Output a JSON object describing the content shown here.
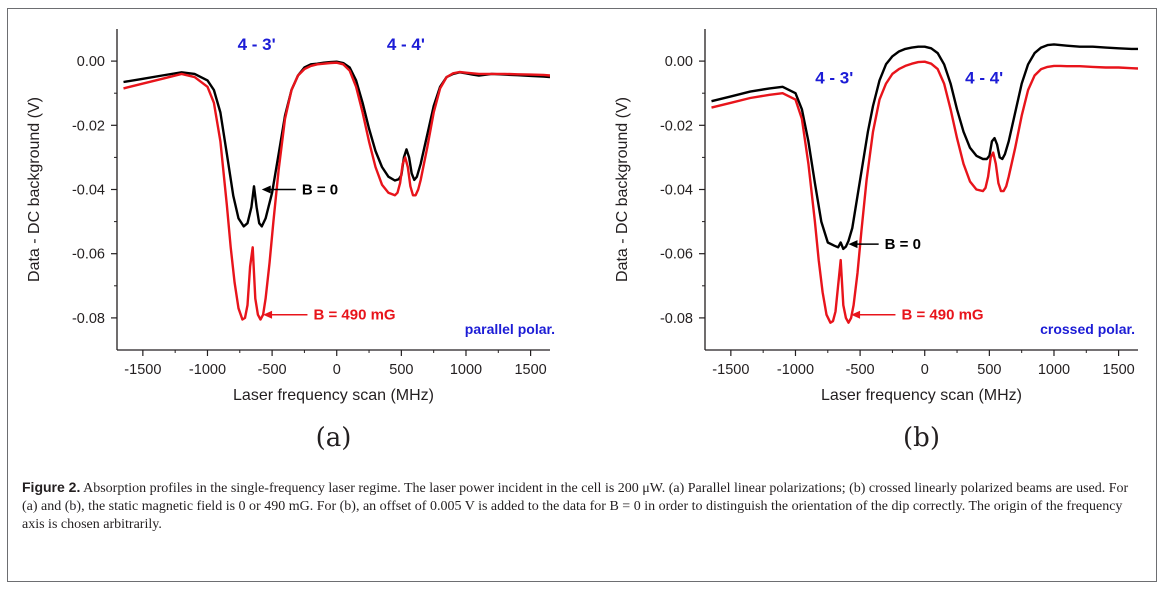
{
  "figure": {
    "caption_label": "Figure 2.",
    "caption_text": "Absorption profiles in the single-frequency laser regime. The laser power incident in the cell is 200 μW. (a) Parallel linear polarizations; (b) crossed linearly polarized beams are used. For (a) and (b), the static magnetic field is 0 or 490 mG. For (b), an offset of 0.005 V is added to the data for B = 0 in order to distinguish the orientation of the dip correctly. The origin of the frequency axis is chosen arbitrarily."
  },
  "chart_data": [
    {
      "type": "line",
      "panel_label": "(a)",
      "xlabel": "Laser frequency scan (MHz)",
      "ylabel": "Data - DC background (V)",
      "xlim": [
        -1700,
        1650
      ],
      "ylim": [
        -0.09,
        0.01
      ],
      "xticks": [
        -1500,
        -1000,
        -500,
        0,
        500,
        1000,
        1500
      ],
      "yticks": [
        0.0,
        -0.02,
        -0.04,
        -0.06,
        -0.08
      ],
      "ytick_labels": [
        "0.00",
        "-0.02",
        "-0.04",
        "-0.06",
        "-0.08"
      ],
      "xtick_labels": [
        "-1500",
        "-1000",
        "-500",
        "0",
        "500",
        "1000",
        "1500"
      ],
      "grid": false,
      "transition_labels": [
        "4 - 3'",
        "4 - 4'"
      ],
      "polarization_label": "parallel polar.",
      "annotations": [
        {
          "text": "B = 0",
          "color": "#000000",
          "arrow_to": [
            -580,
            -0.04
          ]
        },
        {
          "text": "B = 490 mG",
          "color": "#e8141b",
          "arrow_to": [
            -570,
            -0.079
          ]
        }
      ],
      "series": [
        {
          "name": "B = 0",
          "color": "#000000",
          "x": [
            -1650,
            -1500,
            -1350,
            -1200,
            -1100,
            -1000,
            -950,
            -900,
            -850,
            -800,
            -760,
            -720,
            -690,
            -660,
            -640,
            -620,
            -600,
            -580,
            -550,
            -500,
            -450,
            -400,
            -350,
            -300,
            -250,
            -200,
            -150,
            -100,
            -50,
            0,
            50,
            100,
            150,
            200,
            250,
            300,
            350,
            400,
            450,
            480,
            500,
            520,
            540,
            560,
            580,
            600,
            620,
            650,
            700,
            750,
            800,
            850,
            900,
            950,
            1000,
            1050,
            1100,
            1200,
            1300,
            1400,
            1500,
            1600,
            1650
          ],
          "y": [
            -0.0065,
            -0.0055,
            -0.0045,
            -0.0035,
            -0.004,
            -0.006,
            -0.009,
            -0.016,
            -0.029,
            -0.042,
            -0.049,
            -0.0515,
            -0.0505,
            -0.0455,
            -0.039,
            -0.0455,
            -0.0505,
            -0.0515,
            -0.049,
            -0.041,
            -0.029,
            -0.017,
            -0.009,
            -0.0045,
            -0.002,
            -0.001,
            -0.0008,
            -0.0005,
            -0.0003,
            -0.0002,
            -0.0006,
            -0.002,
            -0.006,
            -0.013,
            -0.021,
            -0.028,
            -0.033,
            -0.036,
            -0.0372,
            -0.0368,
            -0.0355,
            -0.03,
            -0.0275,
            -0.03,
            -0.035,
            -0.037,
            -0.036,
            -0.032,
            -0.023,
            -0.014,
            -0.008,
            -0.005,
            -0.004,
            -0.0035,
            -0.0038,
            -0.0042,
            -0.0045,
            -0.004,
            -0.0042,
            -0.0044,
            -0.0046,
            -0.0048,
            -0.005
          ]
        },
        {
          "name": "B = 490 mG",
          "color": "#e8141b",
          "x": [
            -1650,
            -1500,
            -1350,
            -1200,
            -1100,
            -1000,
            -950,
            -900,
            -850,
            -820,
            -790,
            -760,
            -730,
            -710,
            -690,
            -670,
            -650,
            -640,
            -630,
            -610,
            -590,
            -570,
            -550,
            -520,
            -490,
            -450,
            -400,
            -350,
            -300,
            -250,
            -200,
            -150,
            -100,
            -50,
            0,
            50,
            100,
            150,
            200,
            250,
            300,
            350,
            400,
            450,
            470,
            490,
            510,
            530,
            550,
            570,
            590,
            610,
            630,
            650,
            700,
            750,
            800,
            850,
            900,
            950,
            1000,
            1050,
            1100,
            1200,
            1300,
            1400,
            1500,
            1600,
            1650
          ],
          "y": [
            -0.0085,
            -0.007,
            -0.0055,
            -0.004,
            -0.005,
            -0.008,
            -0.013,
            -0.025,
            -0.045,
            -0.058,
            -0.069,
            -0.077,
            -0.0805,
            -0.08,
            -0.076,
            -0.064,
            -0.058,
            -0.066,
            -0.074,
            -0.079,
            -0.0805,
            -0.079,
            -0.074,
            -0.063,
            -0.05,
            -0.034,
            -0.018,
            -0.009,
            -0.0045,
            -0.0025,
            -0.0015,
            -0.001,
            -0.0008,
            -0.0006,
            -0.0005,
            -0.001,
            -0.003,
            -0.008,
            -0.016,
            -0.025,
            -0.033,
            -0.0385,
            -0.041,
            -0.0418,
            -0.041,
            -0.038,
            -0.032,
            -0.03,
            -0.033,
            -0.039,
            -0.0418,
            -0.0418,
            -0.04,
            -0.037,
            -0.027,
            -0.016,
            -0.0085,
            -0.005,
            -0.0038,
            -0.0034,
            -0.0036,
            -0.0038,
            -0.004,
            -0.004,
            -0.004,
            -0.0041,
            -0.0042,
            -0.0043,
            -0.0045
          ]
        }
      ]
    },
    {
      "type": "line",
      "panel_label": "(b)",
      "xlabel": "Laser frequency scan (MHz)",
      "ylabel": "Data - DC background (V)",
      "xlim": [
        -1700,
        1650
      ],
      "ylim": [
        -0.09,
        0.01
      ],
      "xticks": [
        -1500,
        -1000,
        -500,
        0,
        500,
        1000,
        1500
      ],
      "yticks": [
        0.0,
        -0.02,
        -0.04,
        -0.06,
        -0.08
      ],
      "ytick_labels": [
        "0.00",
        "-0.02",
        "-0.04",
        "-0.06",
        "-0.08"
      ],
      "xtick_labels": [
        "-1500",
        "-1000",
        "-500",
        "0",
        "500",
        "1000",
        "1500"
      ],
      "grid": false,
      "transition_labels": [
        "4 - 3'",
        "4 - 4'"
      ],
      "polarization_label": "crossed polar.",
      "annotations": [
        {
          "text": "B = 0",
          "color": "#000000",
          "arrow_to": [
            -590,
            -0.057
          ]
        },
        {
          "text": "B = 490 mG",
          "color": "#e8141b",
          "arrow_to": [
            -570,
            -0.079
          ]
        }
      ],
      "series": [
        {
          "name": "B = 0",
          "color": "#000000",
          "x": [
            -1650,
            -1500,
            -1350,
            -1200,
            -1100,
            -1000,
            -950,
            -900,
            -850,
            -800,
            -750,
            -700,
            -670,
            -650,
            -630,
            -610,
            -590,
            -560,
            -520,
            -480,
            -440,
            -400,
            -350,
            -300,
            -250,
            -200,
            -150,
            -100,
            -50,
            0,
            50,
            100,
            150,
            200,
            250,
            300,
            350,
            400,
            450,
            480,
            500,
            520,
            540,
            560,
            580,
            600,
            620,
            650,
            700,
            750,
            800,
            850,
            900,
            950,
            1000,
            1050,
            1100,
            1200,
            1300,
            1400,
            1500,
            1600,
            1650
          ],
          "y": [
            -0.0125,
            -0.011,
            -0.0095,
            -0.0085,
            -0.008,
            -0.01,
            -0.015,
            -0.025,
            -0.038,
            -0.05,
            -0.0565,
            -0.0575,
            -0.058,
            -0.0565,
            -0.0585,
            -0.0578,
            -0.056,
            -0.052,
            -0.042,
            -0.032,
            -0.022,
            -0.014,
            -0.006,
            -0.001,
            0.0015,
            0.003,
            0.0038,
            0.0042,
            0.0045,
            0.0045,
            0.004,
            0.0025,
            -0.001,
            -0.007,
            -0.015,
            -0.022,
            -0.027,
            -0.0295,
            -0.0305,
            -0.0305,
            -0.0295,
            -0.025,
            -0.024,
            -0.026,
            -0.03,
            -0.0305,
            -0.029,
            -0.025,
            -0.016,
            -0.007,
            -0.001,
            0.0025,
            0.0042,
            0.005,
            0.0052,
            0.005,
            0.0048,
            0.0045,
            0.0045,
            0.0042,
            0.004,
            0.0038,
            0.0038
          ]
        },
        {
          "name": "B = 490 mG",
          "color": "#e8141b",
          "x": [
            -1650,
            -1500,
            -1350,
            -1200,
            -1100,
            -1000,
            -950,
            -900,
            -850,
            -820,
            -790,
            -760,
            -730,
            -710,
            -690,
            -670,
            -650,
            -640,
            -630,
            -610,
            -590,
            -570,
            -550,
            -520,
            -490,
            -450,
            -400,
            -350,
            -300,
            -250,
            -200,
            -150,
            -100,
            -50,
            0,
            50,
            100,
            150,
            200,
            250,
            300,
            350,
            400,
            450,
            470,
            490,
            510,
            530,
            550,
            570,
            590,
            610,
            630,
            650,
            700,
            750,
            800,
            850,
            900,
            950,
            1000,
            1050,
            1100,
            1200,
            1300,
            1400,
            1500,
            1600,
            1650
          ],
          "y": [
            -0.0145,
            -0.013,
            -0.0115,
            -0.0105,
            -0.01,
            -0.012,
            -0.018,
            -0.032,
            -0.05,
            -0.062,
            -0.072,
            -0.079,
            -0.0815,
            -0.081,
            -0.078,
            -0.07,
            -0.062,
            -0.069,
            -0.076,
            -0.08,
            -0.0815,
            -0.08,
            -0.076,
            -0.066,
            -0.053,
            -0.037,
            -0.022,
            -0.012,
            -0.007,
            -0.004,
            -0.0025,
            -0.0015,
            -0.0008,
            -0.0003,
            -0.0002,
            -0.0008,
            -0.0025,
            -0.007,
            -0.015,
            -0.024,
            -0.032,
            -0.0375,
            -0.04,
            -0.0405,
            -0.0395,
            -0.036,
            -0.03,
            -0.0285,
            -0.032,
            -0.038,
            -0.0405,
            -0.0405,
            -0.039,
            -0.036,
            -0.027,
            -0.017,
            -0.009,
            -0.0045,
            -0.0025,
            -0.0018,
            -0.0015,
            -0.0015,
            -0.0016,
            -0.0016,
            -0.0018,
            -0.002,
            -0.002,
            -0.0022,
            -0.0023
          ]
        }
      ]
    }
  ]
}
